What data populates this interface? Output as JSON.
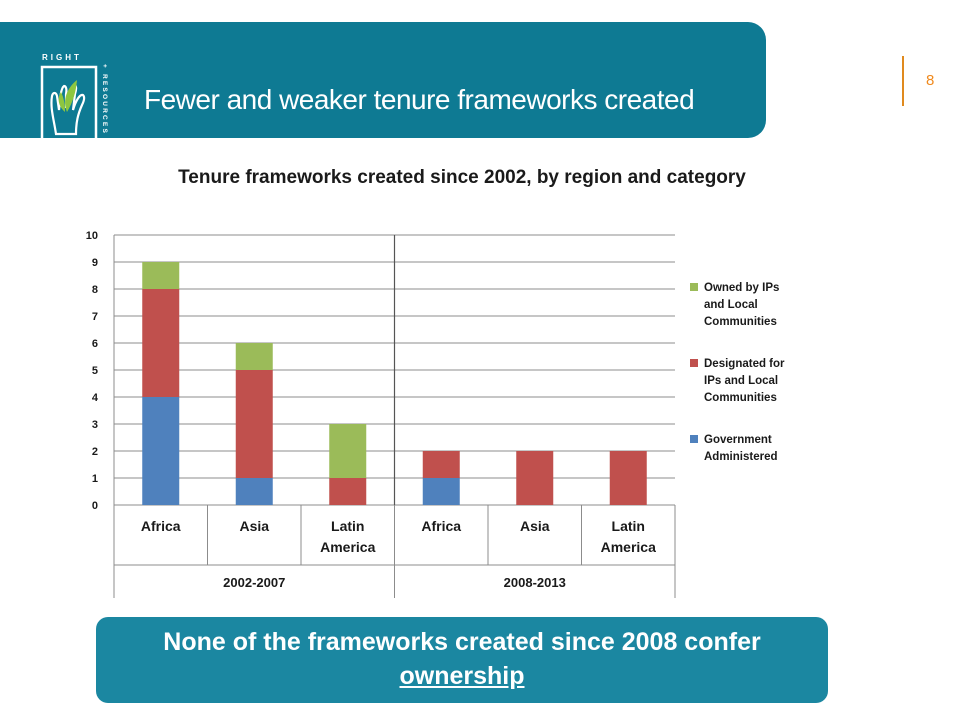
{
  "header": {
    "logo_text_top": "RIGHT",
    "logo_text_side": "+ RESOURCES",
    "title": "Fewer and weaker tenure frameworks created",
    "page_number": "8"
  },
  "callout": {
    "line1": "None of the frameworks created since 2008 confer",
    "line2": "ownership"
  },
  "colors": {
    "header_bg": "#0e7a93",
    "callout_bg": "#1b87a1",
    "government": "#4f81bd",
    "designated": "#c0504d",
    "owned": "#9bbb59"
  },
  "chart_data": {
    "type": "bar",
    "stacked": true,
    "title": "Tenure frameworks created since 2002, by region and category",
    "categories": [
      "Africa",
      "Asia",
      "Latin America",
      "Africa",
      "Asia",
      "Latin America"
    ],
    "category_lines": [
      [
        "Africa"
      ],
      [
        "Asia"
      ],
      [
        "Latin",
        "America"
      ],
      [
        "Africa"
      ],
      [
        "Asia"
      ],
      [
        "Latin",
        "America"
      ]
    ],
    "groups": [
      {
        "label": "2002-2007",
        "categories": 3
      },
      {
        "label": "2008-2013",
        "categories": 3
      }
    ],
    "series": [
      {
        "name": "Government Administered",
        "name_lines": [
          "Government",
          "Administered"
        ],
        "color": "#4f81bd",
        "values": [
          4,
          1,
          0,
          1,
          0,
          0
        ]
      },
      {
        "name": "Designated for IPs and Local Communities",
        "name_lines": [
          "Designated for",
          "IPs and Local",
          "Communities"
        ],
        "color": "#c0504d",
        "values": [
          4,
          4,
          1,
          1,
          2,
          2
        ]
      },
      {
        "name": "Owned by IPs and Local Communities",
        "name_lines": [
          "Owned by IPs",
          "and Local",
          "Communities"
        ],
        "color": "#9bbb59",
        "values": [
          1,
          1,
          2,
          0,
          0,
          0
        ]
      }
    ],
    "ylim": [
      0,
      10
    ],
    "yticks": [
      0,
      1,
      2,
      3,
      4,
      5,
      6,
      7,
      8,
      9,
      10
    ],
    "xlabel": "",
    "ylabel": "",
    "grid": true,
    "legend": "right"
  }
}
